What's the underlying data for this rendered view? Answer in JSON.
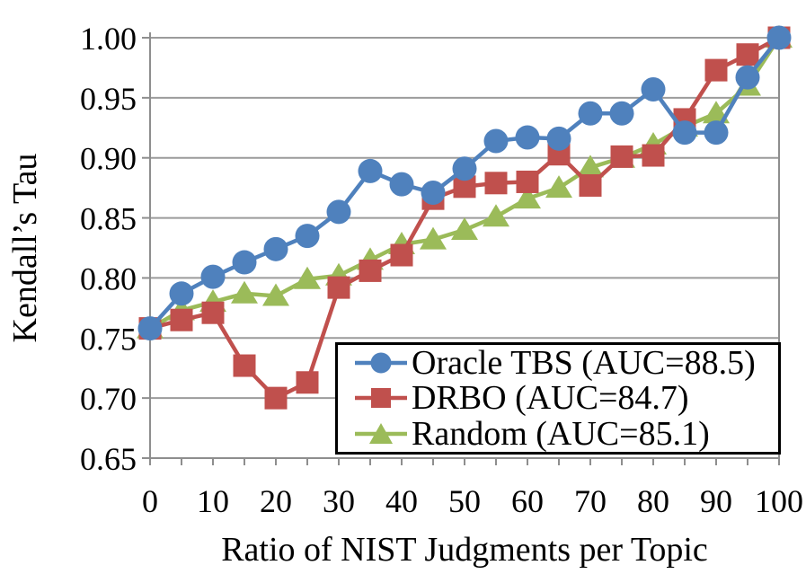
{
  "chart_data": {
    "type": "line",
    "title": "",
    "xlabel": "Ratio of NIST Judgments per Topic",
    "ylabel": "Kendall’s Tau",
    "xlim": [
      0,
      100
    ],
    "ylim": [
      0.65,
      1.0
    ],
    "grid": "horizontal",
    "legend_position": "inside-bottom-right",
    "x_ticks": {
      "values": [
        0,
        10,
        20,
        30,
        40,
        50,
        60,
        70,
        80,
        90,
        100
      ],
      "labels": [
        "0",
        "10",
        "20",
        "30",
        "40",
        "50",
        "60",
        "70",
        "80",
        "90",
        "100"
      ],
      "minor_values": [
        0,
        5,
        10,
        15,
        20,
        25,
        30,
        35,
        40,
        45,
        50,
        55,
        60,
        65,
        70,
        75,
        80,
        85,
        90,
        95,
        100
      ]
    },
    "y_ticks": {
      "values": [
        0.65,
        0.7,
        0.75,
        0.8,
        0.85,
        0.9,
        0.95,
        1.0
      ],
      "labels": [
        "0.65",
        "0.70",
        "0.75",
        "0.80",
        "0.85",
        "0.90",
        "0.95",
        "1.00"
      ]
    },
    "x": [
      0,
      5,
      10,
      15,
      20,
      25,
      30,
      35,
      40,
      45,
      50,
      55,
      60,
      65,
      70,
      75,
      80,
      85,
      90,
      95,
      100
    ],
    "series": [
      {
        "id": "oracle-tbs",
        "name": "Oracle TBS (AUC=88.5)",
        "auc": 88.5,
        "marker": "circle",
        "color": "#4F81BD",
        "values": [
          0.758,
          0.787,
          0.801,
          0.813,
          0.824,
          0.835,
          0.855,
          0.889,
          0.878,
          0.871,
          0.891,
          0.914,
          0.917,
          0.916,
          0.937,
          0.937,
          0.957,
          0.921,
          0.921,
          0.967,
          1.0
        ]
      },
      {
        "id": "drbo",
        "name": "DRBO (AUC=84.7)",
        "auc": 84.7,
        "marker": "square",
        "color": "#C0504D",
        "values": [
          0.758,
          0.765,
          0.771,
          0.727,
          0.7,
          0.713,
          0.792,
          0.806,
          0.819,
          0.866,
          0.876,
          0.879,
          0.88,
          0.903,
          0.877,
          0.901,
          0.902,
          0.932,
          0.973,
          0.986,
          1.0
        ]
      },
      {
        "id": "random",
        "name": "Random (AUC=85.1)",
        "auc": 85.1,
        "marker": "triangle",
        "color": "#9BBB59",
        "values": [
          0.758,
          0.773,
          0.78,
          0.787,
          0.785,
          0.799,
          0.802,
          0.815,
          0.828,
          0.832,
          0.84,
          0.851,
          0.866,
          0.875,
          0.892,
          0.9,
          0.911,
          0.926,
          0.937,
          0.96,
          1.0
        ]
      }
    ]
  },
  "colors": {
    "background": "#FFFFFF",
    "gridline": "#9B9B9B",
    "axis": "#8E8E8E",
    "text": "#000000",
    "legend_border": "#000000"
  }
}
